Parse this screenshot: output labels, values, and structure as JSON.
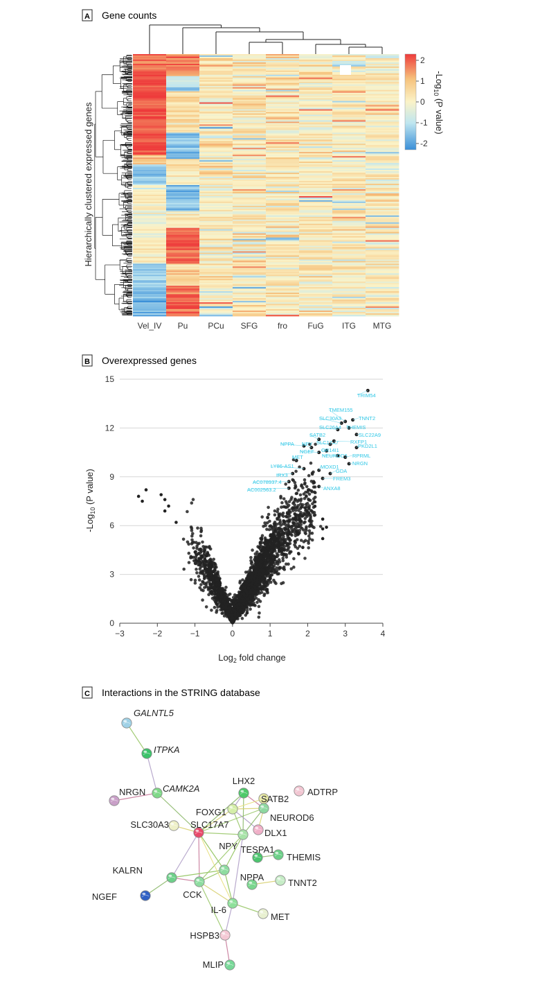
{
  "panels": {
    "a": {
      "letter": "A",
      "title": "Gene counts"
    },
    "b": {
      "letter": "B",
      "title": "Overexpressed genes"
    },
    "c": {
      "letter": "C",
      "title": "Interactions in the STRING database"
    }
  },
  "colors": {
    "low": "#3a8fd8",
    "lowmid": "#bfe6f0",
    "mid": "#fbf3c8",
    "highmid": "#f6c27c",
    "high": "#ee3b3b",
    "dot": "#222222",
    "label": "#2ec7e6"
  },
  "chart_data": [
    {
      "type": "heatmap",
      "title": "Gene counts",
      "ylabel": "Hierarchically clustered expressed genes",
      "columns": [
        "Vel_IV",
        "Pu",
        "PCu",
        "SFG",
        "fro",
        "FuG",
        "ITG",
        "MTG"
      ],
      "colorbar": {
        "label": "-Log10 (P value)",
        "range": [
          -2.3,
          2.3
        ],
        "ticks": [
          "2",
          "1",
          "0",
          "-1",
          "-2"
        ]
      },
      "column_tendency": [
        1.4,
        0.4,
        0.2,
        0.1,
        0.1,
        0.2,
        0.1,
        0.1
      ]
    },
    {
      "type": "scatter",
      "title": "Overexpressed genes",
      "xlabel": "Log2 fold change",
      "ylabel": "-Log10 (P value)",
      "xlim": [
        -3,
        4
      ],
      "ylim": [
        0,
        15
      ],
      "xticks": [
        "-3",
        "-2",
        "-1",
        "0",
        "1",
        "2",
        "3",
        "4"
      ],
      "yticks": [
        "0",
        "3",
        "6",
        "9",
        "12",
        "15"
      ],
      "grid": "horizontal",
      "highlighted_points": [
        {
          "x": 3.6,
          "y": 14.3,
          "label": "TRIM54"
        },
        {
          "x": 3.0,
          "y": 12.4,
          "label": "TMEM155"
        },
        {
          "x": 3.2,
          "y": 12.5,
          "label": "TNNT2"
        },
        {
          "x": 2.9,
          "y": 12.3,
          "label": "SLC30A3"
        },
        {
          "x": 3.1,
          "y": 12.0,
          "label": "THEMIS"
        },
        {
          "x": 2.8,
          "y": 11.9,
          "label": "SLC26A4"
        },
        {
          "x": 3.3,
          "y": 11.6,
          "label": "SLC22A9"
        },
        {
          "x": 2.3,
          "y": 11.3,
          "label": "SATB2"
        },
        {
          "x": 2.6,
          "y": 11.0,
          "label": "SLC17A7"
        },
        {
          "x": 2.7,
          "y": 11.2,
          "label": "RXFP1"
        },
        {
          "x": 1.9,
          "y": 10.9,
          "label": "NPPA"
        },
        {
          "x": 2.1,
          "y": 10.8,
          "label": "NPY"
        },
        {
          "x": 2.5,
          "y": 10.6,
          "label": "OR14I1"
        },
        {
          "x": 3.3,
          "y": 10.8,
          "label": "PKD2L1"
        },
        {
          "x": 2.3,
          "y": 10.5,
          "label": "NGEF"
        },
        {
          "x": 2.8,
          "y": 10.3,
          "label": "NEUROD6"
        },
        {
          "x": 3.0,
          "y": 10.2,
          "label": "RPRML"
        },
        {
          "x": 1.7,
          "y": 10.0,
          "label": "MET"
        },
        {
          "x": 3.1,
          "y": 9.8,
          "label": "NRGN"
        },
        {
          "x": 1.9,
          "y": 9.5,
          "label": "LY86-AS1"
        },
        {
          "x": 2.3,
          "y": 9.4,
          "label": "MOXD1"
        },
        {
          "x": 2.6,
          "y": 9.2,
          "label": "GDA"
        },
        {
          "x": 1.6,
          "y": 9.2,
          "label": "IRX3"
        },
        {
          "x": 2.4,
          "y": 8.9,
          "label": "FREM3"
        },
        {
          "x": 1.5,
          "y": 8.7,
          "label": "AC078937.4"
        },
        {
          "x": 1.5,
          "y": 8.3,
          "label": "AC002563.2"
        },
        {
          "x": 2.3,
          "y": 8.4,
          "label": "ANXA8"
        }
      ],
      "outlier_points": [
        {
          "x": -2.5,
          "y": 7.8
        },
        {
          "x": -2.3,
          "y": 8.2
        },
        {
          "x": -2.4,
          "y": 7.5
        },
        {
          "x": -1.9,
          "y": 7.9
        },
        {
          "x": -1.8,
          "y": 7.6
        },
        {
          "x": -1.7,
          "y": 7.2
        },
        {
          "x": -1.8,
          "y": 6.9
        },
        {
          "x": -1.5,
          "y": 6.2
        },
        {
          "x": 2.4,
          "y": 6.4
        },
        {
          "x": 2.4,
          "y": 5.8
        },
        {
          "x": 2.5,
          "y": 5.9
        },
        {
          "x": 2.4,
          "y": 5.2
        }
      ]
    },
    {
      "type": "network",
      "title": "Interactions in the STRING database",
      "nodes": [
        {
          "id": "GALNTL5",
          "italic": true,
          "color": "#9fd1e6"
        },
        {
          "id": "ITPKA",
          "italic": true,
          "color": "#3cc26a"
        },
        {
          "id": "CAMK2A",
          "italic": true,
          "color": "#7fd888"
        },
        {
          "id": "NRGN",
          "italic": false,
          "color": "#c9a0c8"
        },
        {
          "id": "LHX2",
          "italic": false,
          "color": "#4fc96a"
        },
        {
          "id": "ADTRP",
          "italic": false,
          "color": "#f2c6d2"
        },
        {
          "id": "SATB2",
          "italic": false,
          "color": "#e6e8a0"
        },
        {
          "id": "FOXG1",
          "italic": false,
          "color": "#d4eea8"
        },
        {
          "id": "NEUROD6",
          "italic": false,
          "color": "#8ed8a0"
        },
        {
          "id": "SLC30A3",
          "italic": false,
          "color": "#eef0c8"
        },
        {
          "id": "SLC17A7",
          "italic": false,
          "color": "#e84a6a"
        },
        {
          "id": "DLX1",
          "italic": false,
          "color": "#f0b0c8"
        },
        {
          "id": "NPY",
          "italic": false,
          "color": "#a8e2a8"
        },
        {
          "id": "TESPA1",
          "italic": false,
          "color": "#4cc46e"
        },
        {
          "id": "THEMIS",
          "italic": false,
          "color": "#6cd088"
        },
        {
          "id": "KALRN",
          "italic": false,
          "color": "#6ed08a"
        },
        {
          "id": "NPPA",
          "italic": false,
          "color": "#7ad68e"
        },
        {
          "id": "TNNT2",
          "italic": false,
          "color": "#c6ecc6"
        },
        {
          "id": "NGEF",
          "italic": false,
          "color": "#3060c4"
        },
        {
          "id": "CCK",
          "italic": false,
          "color": "#8edca0"
        },
        {
          "id": "IL-6",
          "italic": false,
          "color": "#8ee09a"
        },
        {
          "id": "MET",
          "italic": false,
          "color": "#e8f0d0"
        },
        {
          "id": "HSPB3",
          "italic": false,
          "color": "#f4c8d4"
        },
        {
          "id": "MLIP",
          "italic": false,
          "color": "#78d898"
        }
      ],
      "edges": [
        [
          "GALNTL5",
          "ITPKA"
        ],
        [
          "ITPKA",
          "CAMK2A"
        ],
        [
          "CAMK2A",
          "NRGN"
        ],
        [
          "CAMK2A",
          "SLC17A7"
        ],
        [
          "SLC17A7",
          "FOXG1"
        ],
        [
          "SLC17A7",
          "NPY"
        ],
        [
          "SLC17A7",
          "KALRN"
        ],
        [
          "SLC17A7",
          "CCK"
        ],
        [
          "SLC17A7",
          "LHX2"
        ],
        [
          "SLC17A7",
          "SLC30A3"
        ],
        [
          "SLC17A7",
          "NEUROD6"
        ],
        [
          "LHX2",
          "FOXG1"
        ],
        [
          "LHX2",
          "NEUROD6"
        ],
        [
          "LHX2",
          "NPY"
        ],
        [
          "FOXG1",
          "NEUROD6"
        ],
        [
          "FOXG1",
          "NPY"
        ],
        [
          "FOXG1",
          "DLX1"
        ],
        [
          "NEUROD6",
          "SATB2"
        ],
        [
          "NEUROD6",
          "NPY"
        ],
        [
          "NEUROD6",
          "DLX1"
        ],
        [
          "NPY",
          "CCK"
        ],
        [
          "NPY",
          "IL-6"
        ],
        [
          "KALRN",
          "CCK"
        ],
        [
          "KALRN",
          "NGEF"
        ],
        [
          "CCK",
          "IL-6"
        ],
        [
          "IL-6",
          "MET"
        ],
        [
          "IL-6",
          "HSPB3"
        ],
        [
          "HSPB3",
          "MLIP"
        ],
        [
          "TESPA1",
          "THEMIS"
        ],
        [
          "NPPA",
          "TNNT2"
        ],
        [
          "CCK",
          "HSPB3"
        ]
      ]
    }
  ]
}
